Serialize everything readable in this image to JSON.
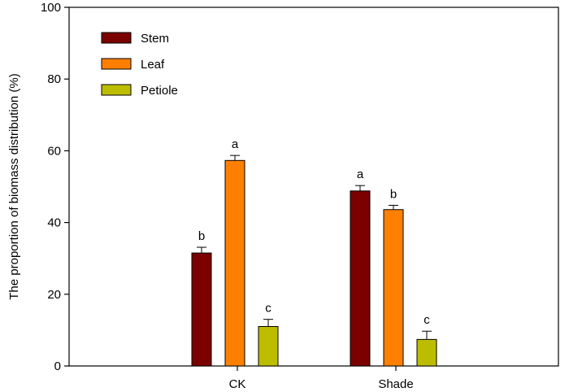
{
  "chart_data": {
    "type": "bar",
    "categories": [
      "CK",
      "Shade"
    ],
    "series": [
      {
        "name": "Stem",
        "color": "#7B0000",
        "values": [
          31.5,
          48.8
        ],
        "errors": [
          1.6,
          1.5
        ],
        "letters": [
          "b",
          "a"
        ]
      },
      {
        "name": "Leaf",
        "color": "#FF8000",
        "values": [
          57.3,
          43.6
        ],
        "errors": [
          1.4,
          1.2
        ],
        "letters": [
          "a",
          "b"
        ]
      },
      {
        "name": "Petiole",
        "color": "#BDBD00",
        "values": [
          11.0,
          7.4
        ],
        "errors": [
          2.0,
          2.3
        ],
        "letters": [
          "c",
          "c"
        ]
      }
    ],
    "title": "",
    "xlabel": "",
    "ylabel": "The proportion of biomass distribution (%)",
    "ylim": [
      0,
      100
    ],
    "yticks": [
      0,
      20,
      40,
      60,
      80,
      100
    ],
    "grid": false,
    "legend_position": "top-left"
  }
}
